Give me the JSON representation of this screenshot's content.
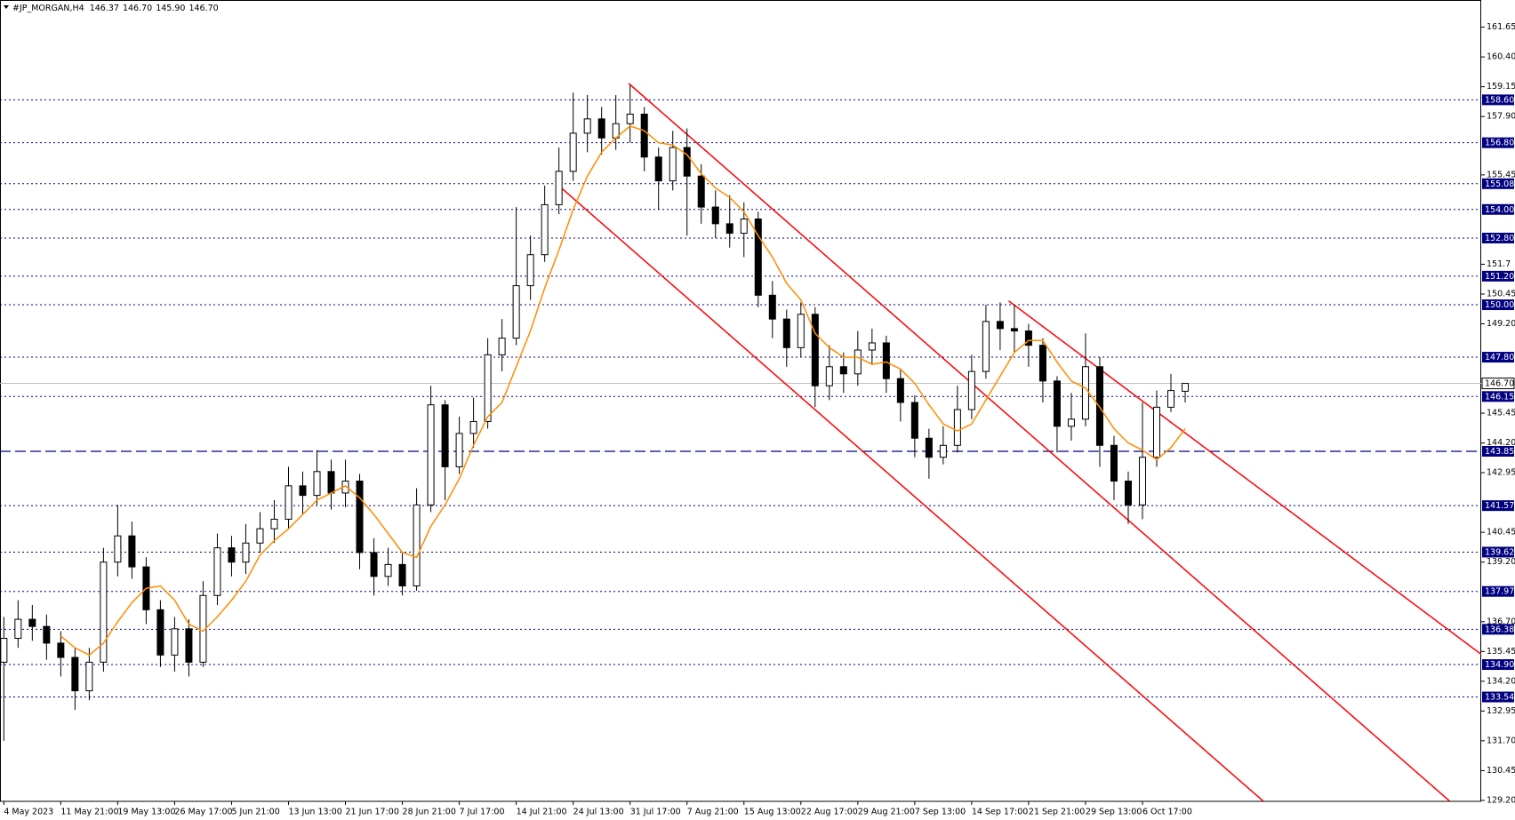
{
  "chart_data": {
    "type": "candlestick",
    "title": "#JP_MORGAN,H4",
    "last_bar_labels": {
      "open": "146.37",
      "high": "146.70",
      "low": "145.90",
      "close": "146.70"
    },
    "categories": [
      "4 May 2023",
      null,
      null,
      null,
      "11 May 21:00",
      null,
      null,
      null,
      "19 May 13:00",
      null,
      null,
      null,
      "26 May 17:00",
      null,
      null,
      null,
      "5 Jun 21:00",
      null,
      null,
      null,
      "13 Jun 13:00",
      null,
      null,
      null,
      "21 Jun 17:00",
      null,
      null,
      null,
      "28 Jun 21:00",
      null,
      null,
      null,
      "7 Jul 17:00",
      null,
      null,
      null,
      "14 Jul 21:00",
      null,
      null,
      null,
      "24 Jul 13:00",
      null,
      null,
      null,
      "31 Jul 17:00",
      null,
      null,
      null,
      "7 Aug 21:00",
      null,
      null,
      null,
      "15 Aug 13:00",
      null,
      null,
      null,
      "22 Aug 17:00",
      null,
      null,
      null,
      "29 Aug 21:00",
      null,
      null,
      null,
      "7 Sep 13:00",
      null,
      null,
      null,
      "14 Sep 17:00",
      null,
      null,
      null,
      "21 Sep 21:00",
      null,
      null,
      null,
      "29 Sep 13:00",
      null,
      null,
      null,
      "6 Oct 17:00",
      null,
      null,
      null
    ],
    "open": [
      135.0,
      136.0,
      136.8,
      136.5,
      135.8,
      135.2,
      133.8,
      135.0,
      139.2,
      140.3,
      139.0,
      137.2,
      135.3,
      136.4,
      135.0,
      137.8,
      139.8,
      139.2,
      140.0,
      140.6,
      141.0,
      142.4,
      142.0,
      143.0,
      142.1,
      142.6,
      139.6,
      138.6,
      139.1,
      138.2,
      141.6,
      145.8,
      143.2,
      144.6,
      145.1,
      147.9,
      148.6,
      150.8,
      152.1,
      154.2,
      155.6,
      157.2,
      157.8,
      157.0,
      157.6,
      158.0,
      156.2,
      155.2,
      156.6,
      155.4,
      154.1,
      153.4,
      153.0,
      153.6,
      150.4,
      149.4,
      148.2,
      149.6,
      146.6,
      147.4,
      147.1,
      148.1,
      148.4,
      146.9,
      145.9,
      144.4,
      143.6,
      144.1,
      145.6,
      147.2,
      149.3,
      149.0,
      148.9,
      148.3,
      146.8,
      144.9,
      145.2,
      147.4,
      144.1,
      142.6,
      141.6,
      143.6,
      145.7,
      146.37
    ],
    "high": [
      136.9,
      137.6,
      137.4,
      137.0,
      136.3,
      135.6,
      135.6,
      139.8,
      141.6,
      140.9,
      139.4,
      137.6,
      136.9,
      136.8,
      138.4,
      140.4,
      140.3,
      140.8,
      141.3,
      141.8,
      143.2,
      143.0,
      143.9,
      143.5,
      143.5,
      142.9,
      140.2,
      139.8,
      139.6,
      142.3,
      146.6,
      146.0,
      145.3,
      146.1,
      148.6,
      149.4,
      154.1,
      152.9,
      155.0,
      156.6,
      158.9,
      158.8,
      158.3,
      158.8,
      159.2,
      158.3,
      156.6,
      157.3,
      157.4,
      155.9,
      154.8,
      154.6,
      154.3,
      153.9,
      151.0,
      149.8,
      150.1,
      149.9,
      148.3,
      148.0,
      148.9,
      149.0,
      148.7,
      147.3,
      146.2,
      144.8,
      144.9,
      146.6,
      147.9,
      150.0,
      150.1,
      150.0,
      149.2,
      148.6,
      147.0,
      146.3,
      148.8,
      147.8,
      144.5,
      143.0,
      145.9,
      146.4,
      147.1,
      146.7
    ],
    "low": [
      131.7,
      135.6,
      135.9,
      135.1,
      134.4,
      133.0,
      133.4,
      134.6,
      138.6,
      138.5,
      136.6,
      134.8,
      134.6,
      134.4,
      134.8,
      137.4,
      138.6,
      138.7,
      139.6,
      140.0,
      140.6,
      141.2,
      141.6,
      141.4,
      141.5,
      138.9,
      137.8,
      138.2,
      137.8,
      138.0,
      141.3,
      141.8,
      142.9,
      144.0,
      144.8,
      147.2,
      148.3,
      150.2,
      151.8,
      153.8,
      155.2,
      156.4,
      156.3,
      156.5,
      156.8,
      155.6,
      154.0,
      154.8,
      152.9,
      153.4,
      152.8,
      152.4,
      152.0,
      149.9,
      148.6,
      147.4,
      147.8,
      145.7,
      146.0,
      146.3,
      146.6,
      147.5,
      146.3,
      145.1,
      143.6,
      142.7,
      143.3,
      143.8,
      145.2,
      146.9,
      148.1,
      148.0,
      147.4,
      145.9,
      143.8,
      144.3,
      144.9,
      143.2,
      141.8,
      140.8,
      141.0,
      143.2,
      145.5,
      145.9
    ],
    "close": [
      136.0,
      136.8,
      136.5,
      135.8,
      135.2,
      133.8,
      135.0,
      139.2,
      140.3,
      139.0,
      137.2,
      135.3,
      136.4,
      135.0,
      137.8,
      139.8,
      139.2,
      140.0,
      140.6,
      141.0,
      142.4,
      142.0,
      143.0,
      142.1,
      142.6,
      139.6,
      138.6,
      139.1,
      138.2,
      141.6,
      145.8,
      143.2,
      144.6,
      145.1,
      147.9,
      148.6,
      150.8,
      152.1,
      154.2,
      155.6,
      157.2,
      157.8,
      157.0,
      157.6,
      158.0,
      156.2,
      155.2,
      156.6,
      155.4,
      154.1,
      153.4,
      153.0,
      153.6,
      150.4,
      149.4,
      148.2,
      149.6,
      146.6,
      147.4,
      147.1,
      148.1,
      148.4,
      146.9,
      145.9,
      144.4,
      143.6,
      144.1,
      145.6,
      147.2,
      149.3,
      149.0,
      148.9,
      148.3,
      146.8,
      144.9,
      145.2,
      147.4,
      144.1,
      142.6,
      141.6,
      143.6,
      145.7,
      146.4,
      146.7
    ],
    "ma": {
      "color": "#ff8c00",
      "values": [
        null,
        null,
        null,
        null,
        136.1,
        135.6,
        135.3,
        135.8,
        136.7,
        137.5,
        138.1,
        138.2,
        137.6,
        136.6,
        136.3,
        136.9,
        137.6,
        138.4,
        139.5,
        140.1,
        140.6,
        141.2,
        141.8,
        142.1,
        142.4,
        141.9,
        141.2,
        140.4,
        139.6,
        139.4,
        140.7,
        141.6,
        142.7,
        144.1,
        145.3,
        145.9,
        147.4,
        148.9,
        150.7,
        152.3,
        154.0,
        155.4,
        156.4,
        157.0,
        157.5,
        157.3,
        156.8,
        156.7,
        156.3,
        155.5,
        154.9,
        154.5,
        153.9,
        152.9,
        152.0,
        150.9,
        150.2,
        148.8,
        148.2,
        147.8,
        147.8,
        147.5,
        147.6,
        147.3,
        146.7,
        145.8,
        145.0,
        144.7,
        145.0,
        146.0,
        147.0,
        148.0,
        148.5,
        148.5,
        147.6,
        146.8,
        146.5,
        145.7,
        144.8,
        144.2,
        143.9,
        143.5,
        144.0,
        144.8
      ]
    },
    "trendlines": [
      {
        "color": "#ff0000",
        "x": [
          43.9,
          101.6
        ],
        "y": [
          159.29,
          129.16
        ]
      },
      {
        "color": "#ff0000",
        "x": [
          39.0,
          88.5
        ],
        "y": [
          154.99,
          129.16
        ]
      },
      {
        "color": "#ff0000",
        "x": [
          70.6,
          103.8
        ],
        "y": [
          150.16,
          135.33
        ]
      }
    ],
    "levels": [
      {
        "value": 158.6,
        "label": "158.60"
      },
      {
        "value": 156.8,
        "label": "156.80"
      },
      {
        "value": 155.08,
        "label": "155.08"
      },
      {
        "value": 154,
        "label": "154.00"
      },
      {
        "value": 152.8,
        "label": "152.80"
      },
      {
        "value": 151.2,
        "label": "151.20"
      },
      {
        "value": 150,
        "label": "150.00"
      },
      {
        "value": 147.8,
        "label": "147.80"
      },
      {
        "value": 146.15,
        "label": "146.15"
      },
      {
        "value": 143.85,
        "label": "143.85",
        "style": "dashed"
      },
      {
        "value": 141.57,
        "label": "141.57"
      },
      {
        "value": 139.62,
        "label": "139.62"
      },
      {
        "value": 137.97,
        "label": "137.97"
      },
      {
        "value": 136.38,
        "label": "136.38"
      },
      {
        "value": 134.9,
        "label": "134.90"
      },
      {
        "value": 133.54,
        "label": "133.54"
      }
    ],
    "level_color": "#000080",
    "price_line": {
      "value": 146.7,
      "label": "146.70"
    },
    "xlim": [
      -0.27,
      103.8
    ],
    "ylim": [
      129.16,
      162.79
    ],
    "yticks": [
      161.65,
      {
        "value": 160.4,
        "label": "160.40"
      },
      159.15,
      {
        "value": 157.9,
        "label": "157.90"
      },
      155.45,
      151.7,
      150.45,
      {
        "value": 149.2,
        "label": "149.20"
      },
      145.45,
      {
        "value": 144.2,
        "label": "144.20"
      },
      142.95,
      140.45,
      {
        "value": 139.2,
        "label": "139.20"
      },
      {
        "value": 136.7,
        "label": "136.70"
      },
      135.45,
      {
        "value": 134.2,
        "label": "134.20"
      },
      132.95,
      {
        "value": 131.7,
        "label": "131.70"
      },
      130.45,
      {
        "value": 129.2,
        "label": "129.20"
      }
    ]
  }
}
